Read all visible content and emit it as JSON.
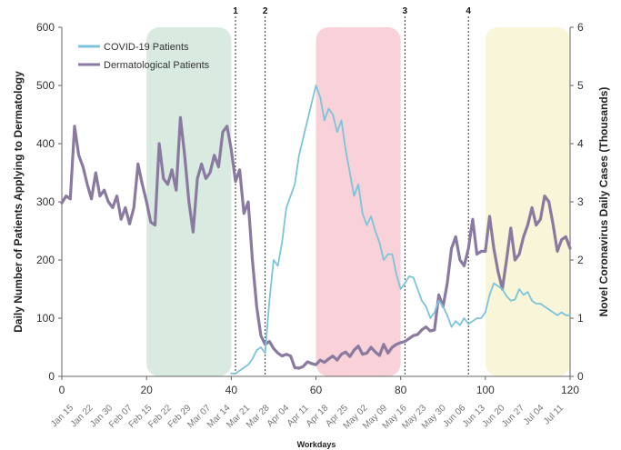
{
  "chart_data": {
    "type": "line",
    "xlabel": "Workdays",
    "ylabel_left": "Daily Number of Patients Applying to Dermatology",
    "ylabel_right": "Novel Coronavirus Daily Cases (Thousands)",
    "x_ticks": [
      "0",
      "20",
      "40",
      "60",
      "80",
      "100",
      "120"
    ],
    "y_left_ticks": [
      "0",
      "100",
      "200",
      "300",
      "400",
      "500",
      "600"
    ],
    "y_right_ticks": [
      "0",
      "1",
      "2",
      "3",
      "4",
      "5",
      "6"
    ],
    "xlim": [
      0,
      120
    ],
    "ylim_left": [
      0,
      600
    ],
    "ylim_right": [
      0,
      6
    ],
    "date_ticks": [
      "Jan 15",
      "Jan 22",
      "Jan 30",
      "Feb 07",
      "Feb 15",
      "Feb 22",
      "Feb 29",
      "Mar 07",
      "Mar 14",
      "Mar 21",
      "Mar 28",
      "Apr 04",
      "Apr 11",
      "Apr 18",
      "Apr 25",
      "May 02",
      "May 09",
      "May 16",
      "May 23",
      "May 30",
      "Jun 06",
      "Jun 13",
      "Jun 20",
      "Jun 27",
      "Jul 04",
      "Jul 11"
    ],
    "grid": false,
    "legend": {
      "placement": "top-left",
      "entries": [
        {
          "label": "COVID-19 Patients",
          "color": "#7cc4dc"
        },
        {
          "label": "Dermatological Patients",
          "color": "#8a7aa0"
        }
      ]
    },
    "regions": [
      {
        "x0": 20,
        "x1": 40,
        "color": "#d5e8de"
      },
      {
        "x0": 60,
        "x1": 80,
        "color": "#f8ccd4"
      },
      {
        "x0": 100,
        "x1": 120,
        "color": "#f8f4d4"
      }
    ],
    "event_lines": [
      {
        "label": "1",
        "x": 41
      },
      {
        "label": "2",
        "x": 48
      },
      {
        "label": "3",
        "x": 81
      },
      {
        "label": "4",
        "x": 96
      }
    ],
    "series": [
      {
        "name": "Dermatological Patients",
        "axis": "left",
        "color": "#8a7aa0",
        "x": [
          0,
          1,
          2,
          3,
          4,
          5,
          6,
          7,
          8,
          9,
          10,
          11,
          12,
          13,
          14,
          15,
          16,
          17,
          18,
          19,
          20,
          21,
          22,
          23,
          24,
          25,
          26,
          27,
          28,
          29,
          30,
          31,
          32,
          33,
          34,
          35,
          36,
          37,
          38,
          39,
          40,
          41,
          42,
          43,
          44,
          45,
          46,
          47,
          48,
          49,
          50,
          51,
          52,
          53,
          54,
          55,
          56,
          57,
          58,
          59,
          60,
          61,
          62,
          63,
          64,
          65,
          66,
          67,
          68,
          69,
          70,
          71,
          72,
          73,
          74,
          75,
          76,
          77,
          78,
          79,
          80,
          81,
          82,
          83,
          84,
          85,
          86,
          87,
          88,
          89,
          90,
          91,
          92,
          93,
          94,
          95,
          96,
          97,
          98,
          99,
          100,
          101,
          102,
          103,
          104,
          105,
          106,
          107,
          108,
          109,
          110,
          111,
          112,
          113,
          114,
          115,
          116,
          117,
          118,
          119,
          120
        ],
        "values": [
          298,
          310,
          305,
          430,
          380,
          360,
          330,
          305,
          350,
          310,
          320,
          300,
          290,
          310,
          270,
          290,
          262,
          290,
          365,
          330,
          300,
          265,
          260,
          400,
          340,
          330,
          355,
          320,
          445,
          380,
          300,
          248,
          340,
          365,
          340,
          350,
          380,
          360,
          420,
          430,
          390,
          335,
          355,
          280,
          300,
          200,
          120,
          70,
          55,
          60,
          48,
          40,
          35,
          38,
          35,
          15,
          14,
          17,
          25,
          22,
          20,
          28,
          24,
          30,
          35,
          28,
          38,
          42,
          34,
          45,
          52,
          38,
          40,
          50,
          42,
          36,
          55,
          40,
          50,
          55,
          58,
          60,
          65,
          70,
          72,
          80,
          85,
          78,
          80,
          140,
          120,
          160,
          220,
          240,
          200,
          190,
          220,
          270,
          210,
          215,
          215,
          275,
          220,
          180,
          150,
          200,
          255,
          200,
          210,
          240,
          260,
          290,
          260,
          270,
          310,
          300,
          260,
          215,
          235,
          240,
          220
        ]
      },
      {
        "name": "COVID-19 Patients",
        "axis": "right",
        "color": "#7cc4dc",
        "x": [
          40,
          41,
          42,
          43,
          44,
          45,
          46,
          47,
          48,
          49,
          50,
          51,
          52,
          53,
          54,
          55,
          56,
          57,
          58,
          59,
          60,
          61,
          62,
          63,
          64,
          65,
          66,
          67,
          68,
          69,
          70,
          71,
          72,
          73,
          74,
          75,
          76,
          77,
          78,
          79,
          80,
          81,
          82,
          83,
          84,
          85,
          86,
          87,
          88,
          89,
          90,
          91,
          92,
          93,
          94,
          95,
          96,
          97,
          98,
          99,
          100,
          101,
          102,
          103,
          104,
          105,
          106,
          107,
          108,
          109,
          110,
          111,
          112,
          113,
          114,
          115,
          116,
          117,
          118,
          119,
          120
        ],
        "values": [
          0.05,
          0.05,
          0.1,
          0.15,
          0.2,
          0.3,
          0.45,
          0.5,
          0.4,
          1.3,
          2.0,
          1.9,
          2.3,
          2.9,
          3.1,
          3.3,
          3.8,
          4.1,
          4.4,
          4.7,
          5.0,
          4.8,
          4.4,
          4.6,
          4.5,
          4.2,
          4.4,
          3.9,
          3.5,
          3.1,
          3.3,
          2.8,
          2.6,
          2.75,
          2.5,
          2.3,
          2.0,
          2.1,
          2.1,
          1.75,
          1.5,
          1.6,
          1.72,
          1.7,
          1.5,
          1.3,
          1.2,
          1.0,
          1.1,
          1.3,
          1.2,
          1.05,
          0.85,
          0.95,
          0.88,
          1.0,
          0.9,
          0.95,
          1.0,
          1.0,
          1.1,
          1.4,
          1.6,
          1.55,
          1.5,
          1.38,
          1.3,
          1.32,
          1.5,
          1.4,
          1.45,
          1.3,
          1.25,
          1.25,
          1.2,
          1.15,
          1.1,
          1.05,
          1.1,
          1.05,
          1.05
        ]
      }
    ]
  }
}
